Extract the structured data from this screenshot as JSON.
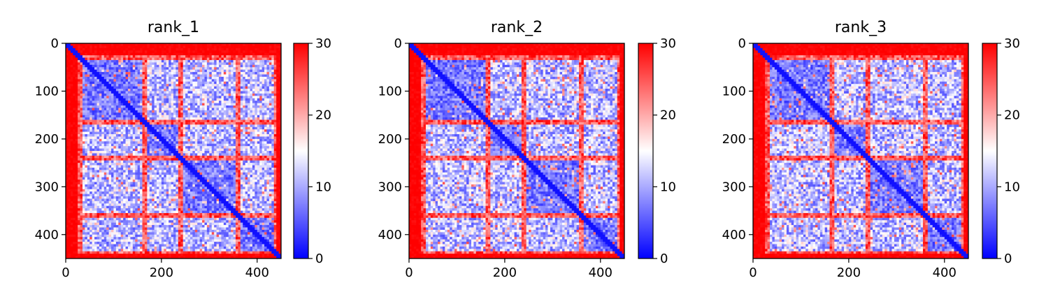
{
  "figure": {
    "background": "#ffffff"
  },
  "chart_data": [
    {
      "type": "heatmap",
      "title": "rank_1",
      "xlabel": "",
      "ylabel": "",
      "xlim": [
        0,
        450
      ],
      "ylim": [
        450,
        0
      ],
      "x_ticks": [
        0,
        200,
        400
      ],
      "y_ticks": [
        0,
        100,
        200,
        300,
        400
      ],
      "colorbar": {
        "range": [
          0,
          30
        ],
        "ticks": [
          0,
          10,
          20,
          30
        ],
        "colormap": [
          "#0000ff",
          "#ffffff",
          "#ff0000"
        ]
      },
      "matrix_size": 450,
      "description_values": {
        "diagonal": 0,
        "near_band_rows": [
          0,
          30,
          165,
          240,
          360,
          440
        ],
        "blocks": [
          [
            30,
            165
          ],
          [
            165,
            240
          ],
          [
            240,
            360
          ],
          [
            360,
            440
          ]
        ]
      }
    },
    {
      "type": "heatmap",
      "title": "rank_2",
      "xlabel": "",
      "ylabel": "",
      "xlim": [
        0,
        450
      ],
      "ylim": [
        450,
        0
      ],
      "x_ticks": [
        0,
        200,
        400
      ],
      "y_ticks": [
        0,
        100,
        200,
        300,
        400
      ],
      "colorbar": {
        "range": [
          0,
          30
        ],
        "ticks": [
          0,
          10,
          20,
          30
        ],
        "colormap": [
          "#0000ff",
          "#ffffff",
          "#ff0000"
        ]
      },
      "matrix_size": 450,
      "description_values": {
        "diagonal": 0,
        "near_band_rows": [
          0,
          30,
          165,
          240,
          360,
          440
        ],
        "blocks": [
          [
            30,
            165
          ],
          [
            165,
            240
          ],
          [
            240,
            360
          ],
          [
            360,
            440
          ]
        ]
      }
    },
    {
      "type": "heatmap",
      "title": "rank_3",
      "xlabel": "",
      "ylabel": "",
      "xlim": [
        0,
        450
      ],
      "ylim": [
        450,
        0
      ],
      "x_ticks": [
        0,
        200,
        400
      ],
      "y_ticks": [
        0,
        100,
        200,
        300,
        400
      ],
      "colorbar": {
        "range": [
          0,
          30
        ],
        "ticks": [
          0,
          10,
          20,
          30
        ],
        "colormap": [
          "#0000ff",
          "#ffffff",
          "#ff0000"
        ]
      },
      "matrix_size": 450,
      "description_values": {
        "diagonal": 0,
        "near_band_rows": [
          0,
          30,
          165,
          240,
          360,
          440
        ],
        "blocks": [
          [
            30,
            165
          ],
          [
            165,
            240
          ],
          [
            240,
            360
          ],
          [
            360,
            440
          ]
        ]
      }
    }
  ]
}
